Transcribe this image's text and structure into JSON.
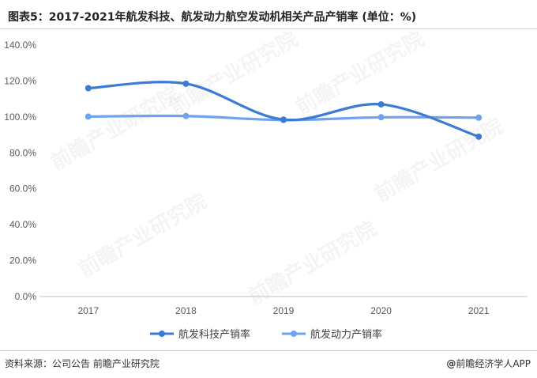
{
  "title": "图表5：2017-2021年航发科技、航发动力航空发动机相关产品产销率 (单位：%)",
  "source": "资料来源：公司公告 前瞻产业研究院",
  "brand": {
    "at": "@",
    "name": "前瞻经济学人APP"
  },
  "watermark": {
    "name": "前瞻产业研究院"
  },
  "colors": {
    "series1": "#3a7bd5",
    "series2": "#6fa3ef",
    "grid": "#d9d9d9",
    "axis": "#bfbfbf"
  },
  "chart_data": {
    "type": "line",
    "categories": [
      "2017",
      "2018",
      "2019",
      "2020",
      "2021"
    ],
    "ylim": [
      0,
      140
    ],
    "yticks": [
      "0.0%",
      "20.0%",
      "40.0%",
      "60.0%",
      "80.0%",
      "100.0%",
      "120.0%",
      "140.0%"
    ],
    "grid": false,
    "smooth": true,
    "legend_position": "bottom",
    "series": [
      {
        "name": "航发科技产销率",
        "values": [
          116.0,
          118.5,
          98.5,
          107.0,
          89.0
        ]
      },
      {
        "name": "航发动力产销率",
        "values": [
          100.2,
          100.5,
          98.3,
          99.8,
          99.6
        ]
      }
    ]
  }
}
